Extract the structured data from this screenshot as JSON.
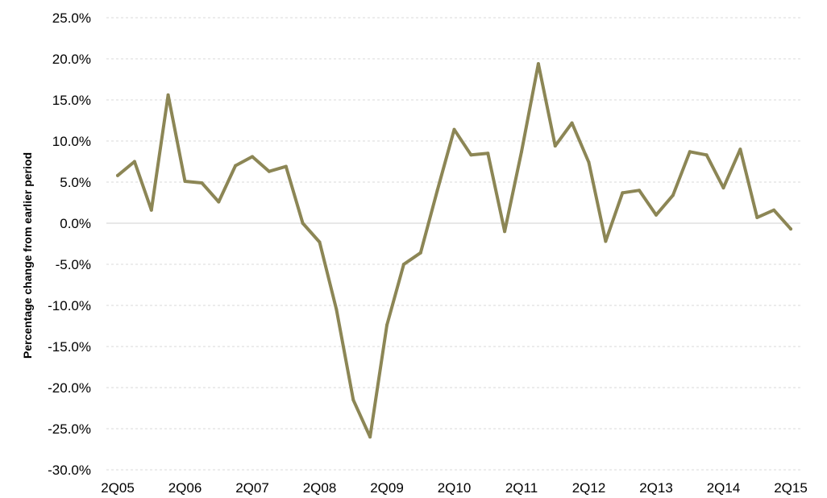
{
  "chart_data": {
    "type": "line",
    "title": "",
    "xlabel": "",
    "ylabel": "Percentage change from earlier period",
    "ylim": [
      -30,
      25
    ],
    "y_ticks": [
      "-30.0%",
      "-25.0%",
      "-20.0%",
      "-15.0%",
      "-10.0%",
      "-5.0%",
      "0.0%",
      "5.0%",
      "10.0%",
      "15.0%",
      "20.0%",
      "25.0%"
    ],
    "y_tick_values": [
      -30,
      -25,
      -20,
      -15,
      -10,
      -5,
      0,
      5,
      10,
      15,
      20,
      25
    ],
    "x_tick_labels": [
      "2Q05",
      "2Q06",
      "2Q07",
      "2Q08",
      "2Q09",
      "2Q10",
      "2Q11",
      "2Q12",
      "2Q13",
      "2Q14",
      "2Q15"
    ],
    "grid": true,
    "legend": "none",
    "line_color": "#8c8655",
    "categories": [
      "2Q05",
      "3Q05",
      "4Q05",
      "1Q06",
      "2Q06",
      "3Q06",
      "4Q06",
      "1Q07",
      "2Q07",
      "3Q07",
      "4Q07",
      "1Q08",
      "2Q08",
      "3Q08",
      "4Q08",
      "1Q09",
      "2Q09",
      "3Q09",
      "4Q09",
      "1Q10",
      "2Q10",
      "3Q10",
      "4Q10",
      "1Q11",
      "2Q11",
      "3Q11",
      "4Q11",
      "1Q12",
      "2Q12",
      "3Q12",
      "4Q12",
      "1Q13",
      "2Q13",
      "3Q13",
      "4Q13",
      "1Q14",
      "2Q14",
      "3Q14",
      "4Q14",
      "1Q15",
      "2Q15"
    ],
    "series": [
      {
        "values": [
          5.8,
          7.5,
          1.6,
          15.6,
          5.1,
          4.9,
          2.6,
          7.0,
          8.1,
          6.3,
          6.9,
          0.0,
          -2.3,
          -10.5,
          -21.5,
          -26.0,
          -12.4,
          -5.0,
          -3.6,
          4.0,
          11.4,
          8.3,
          8.5,
          -1.0,
          8.7,
          19.4,
          9.4,
          12.2,
          7.4,
          -2.2,
          3.7,
          4.0,
          1.0,
          3.4,
          8.7,
          8.3,
          4.3,
          9.0,
          0.7,
          1.6,
          -0.7
        ]
      }
    ]
  }
}
